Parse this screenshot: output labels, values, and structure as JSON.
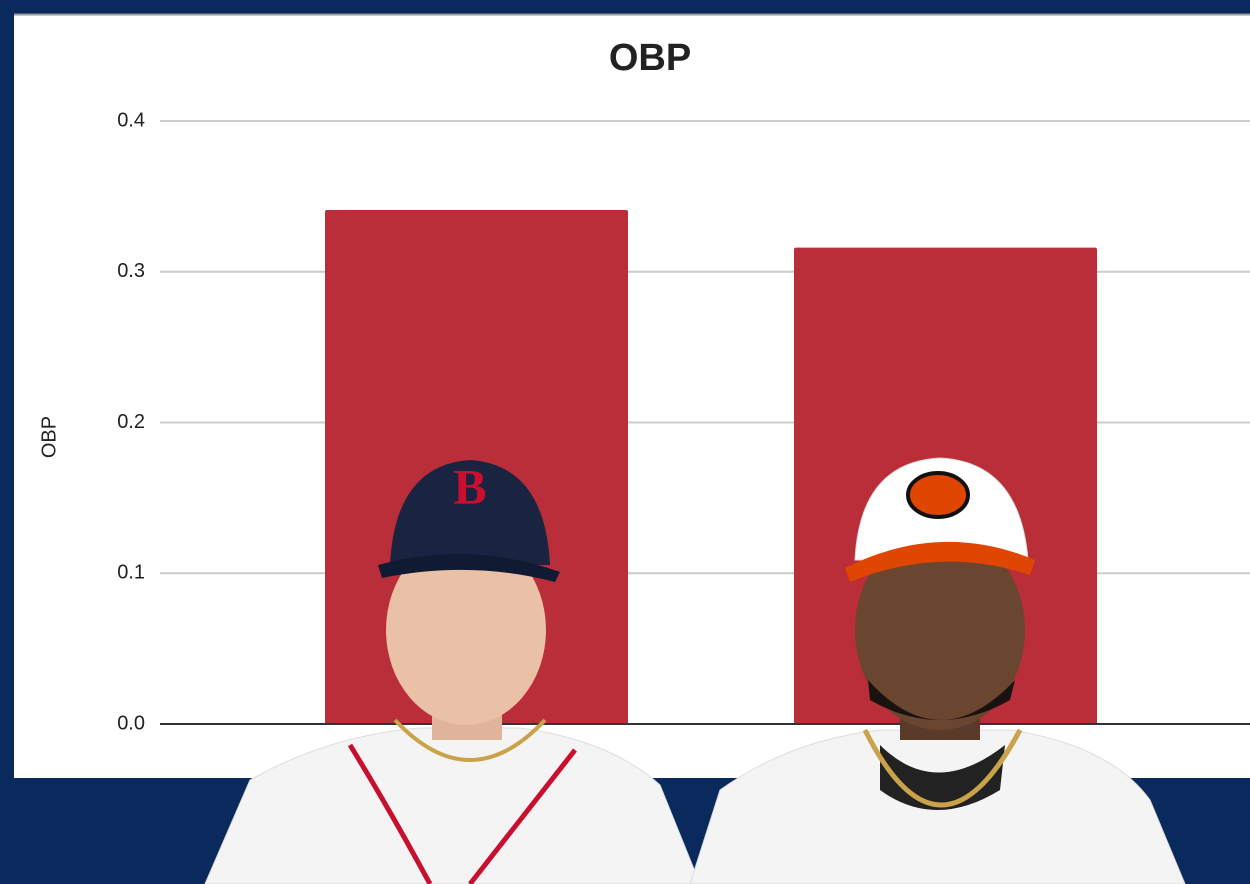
{
  "chart_data": {
    "type": "bar",
    "title": "OBP",
    "y_label": "OBP",
    "categories": [
      null,
      null
    ],
    "values": [
      0.341,
      0.316
    ],
    "color": "#b92e38",
    "ylim": [
      0,
      0.4
    ],
    "yticks": [
      {
        "value": 0,
        "label": "0.0"
      },
      0.1,
      0.2,
      0.3,
      0.4
    ],
    "grid": true
  }
}
